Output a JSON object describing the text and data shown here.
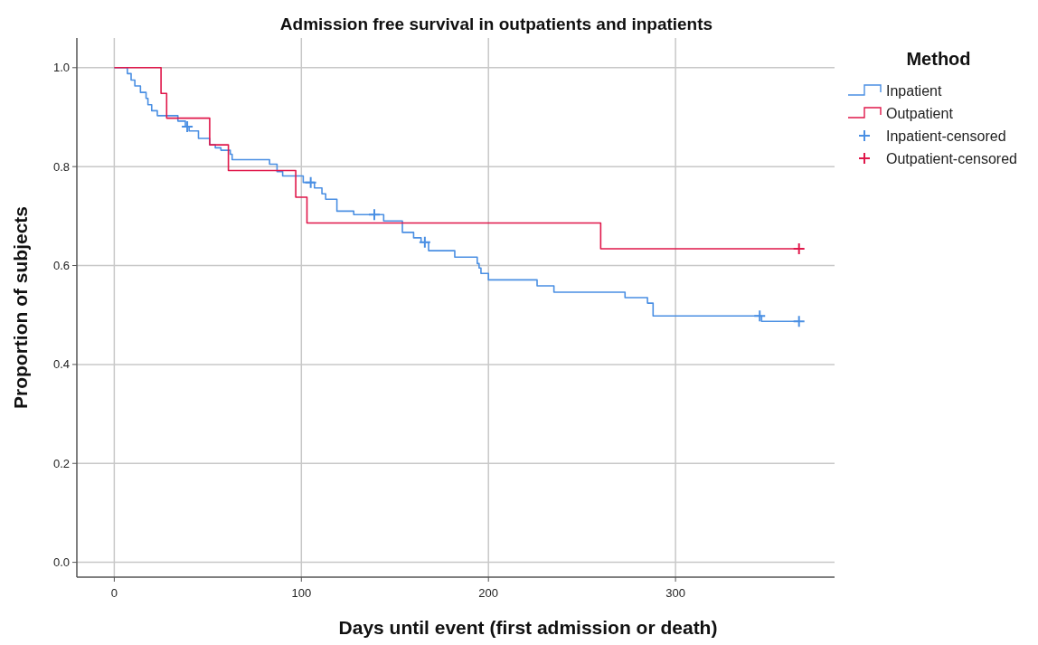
{
  "chart_data": {
    "type": "step",
    "title": "Admission free survival in outpatients and inpatients",
    "xlabel": "Days until event (first admission or death)",
    "ylabel": "Proportion of subjects",
    "legend_title": "Method",
    "legend": "right",
    "grid": true,
    "xlim": [
      -20,
      385
    ],
    "ylim": [
      -0.03,
      1.06
    ],
    "xticks": [
      0,
      100,
      200,
      300
    ],
    "yticks": [
      {
        "value": 0,
        "label": "0.0"
      },
      {
        "value": 0.2,
        "label": "0.2"
      },
      {
        "value": 0.4,
        "label": "0.4"
      },
      {
        "value": 0.6,
        "label": "0.6"
      },
      {
        "value": 0.8,
        "label": "0.8"
      },
      {
        "value": 1,
        "label": "1.0"
      }
    ],
    "series": [
      {
        "name": "Inpatient",
        "color": "#4a8fe3",
        "x": [
          0,
          7,
          9,
          11,
          14,
          17,
          18,
          20,
          23,
          34,
          38,
          40,
          45,
          51,
          54,
          57,
          62,
          63,
          83,
          87,
          90,
          101,
          107,
          111,
          113,
          119,
          128,
          144,
          154,
          160,
          164,
          168,
          182,
          194,
          195,
          196,
          200,
          226,
          235,
          273,
          285,
          288,
          346,
          366
        ],
        "values": [
          1.0,
          0.988,
          0.975,
          0.963,
          0.95,
          0.938,
          0.925,
          0.913,
          0.903,
          0.892,
          0.881,
          0.872,
          0.857,
          0.844,
          0.838,
          0.833,
          0.825,
          0.814,
          0.805,
          0.79,
          0.781,
          0.768,
          0.757,
          0.745,
          0.734,
          0.71,
          0.703,
          0.69,
          0.667,
          0.656,
          0.647,
          0.63,
          0.617,
          0.604,
          0.595,
          0.584,
          0.571,
          0.559,
          0.546,
          0.535,
          0.524,
          0.498,
          0.487,
          0.487
        ]
      },
      {
        "name": "Outpatient",
        "color": "#e0174a",
        "x": [
          0,
          25,
          28,
          51,
          61,
          97,
          103,
          260,
          366
        ],
        "values": [
          1.0,
          0.948,
          0.898,
          0.844,
          0.792,
          0.738,
          0.686,
          0.634,
          0.634
        ]
      },
      {
        "name": "Inpatient-censored",
        "type": "scatter",
        "marker": "cross",
        "color": "#4a8fe3",
        "x": [
          39,
          105,
          139,
          166,
          345,
          366
        ],
        "values": [
          0.881,
          0.768,
          0.703,
          0.647,
          0.498,
          0.487
        ]
      },
      {
        "name": "Outpatient-censored",
        "type": "scatter",
        "marker": "cross",
        "color": "#e0174a",
        "x": [
          366
        ],
        "values": [
          0.634
        ]
      }
    ]
  }
}
